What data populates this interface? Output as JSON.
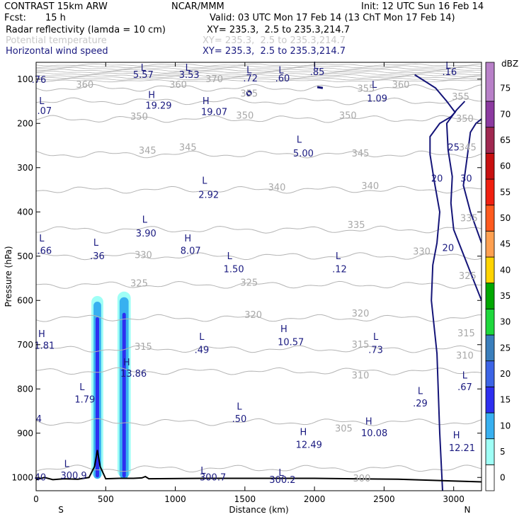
{
  "header": {
    "model": "CONTRAST 15km ARW",
    "org": "NCAR/MMM",
    "init": "Init: 12 UTC Sun 16 Feb 14",
    "fcst_label": "Fcst:",
    "fcst_value": "15 h",
    "valid": "Valid: 03 UTC Mon 17 Feb 14 (13 ChT Mon 17 Feb 14)",
    "fields": [
      {
        "name": "Radar reflectivity (lamda = 10 cm)",
        "xy": "XY= 235.3,  2.5 to 235.3,214.7",
        "style": "black"
      },
      {
        "name": "Potential temperature",
        "xy": "XY= 235.3,  2.5 to 235.3,214.7",
        "style": "gray"
      },
      {
        "name": "Horizontal wind speed",
        "xy": "XY= 235.3,  2.5 to 235.3,214.7",
        "style": "blue"
      }
    ]
  },
  "chart_data": {
    "type": "cross-section contour",
    "xlabel": "Distance (km)",
    "ylabel": "Pressure (hPa)",
    "xlim": [
      0,
      3200
    ],
    "ylim": [
      1030,
      62
    ],
    "x_ticks": [
      0,
      500,
      1000,
      1500,
      2000,
      2500,
      3000
    ],
    "y_ticks": [
      100,
      200,
      300,
      400,
      500,
      600,
      700,
      800,
      900,
      1000
    ],
    "x_end_labels": {
      "left": "S",
      "right": "N"
    },
    "colorbar": {
      "unit": "dBZ",
      "levels": [
        0,
        5,
        10,
        15,
        20,
        25,
        30,
        35,
        40,
        45,
        50,
        55,
        60,
        65,
        70,
        75
      ],
      "colors": [
        "#ffffff",
        "#9ffff6",
        "#38b0f0",
        "#2d2ff0",
        "#3c64e6",
        "#3a7ebc",
        "#1ed83c",
        "#00a800",
        "#ffd400",
        "#ffa050",
        "#ff5a1e",
        "#f02010",
        "#c81010",
        "#a02850",
        "#8c3aa0",
        "#b880c8"
      ]
    },
    "reflectivity_columns": [
      {
        "x_center": 440,
        "p_top": 590,
        "p_bottom": 1000,
        "width_km": 55,
        "inner": 15
      },
      {
        "x_center": 632,
        "p_top": 580,
        "p_bottom": 1000,
        "width_km": 65,
        "inner": 15
      }
    ],
    "theta_contours": [
      {
        "level": "360",
        "p": 120
      },
      {
        "level": "355",
        "p": 150
      },
      {
        "level": "350",
        "p": 190
      },
      {
        "level": "345",
        "p": 270
      },
      {
        "level": "340",
        "p": 350
      },
      {
        "level": "335",
        "p": 440
      },
      {
        "level": "330",
        "p": 500
      },
      {
        "level": "325",
        "p": 565
      },
      {
        "level": "320",
        "p": 640
      },
      {
        "level": "315",
        "p": 710
      },
      {
        "level": "310",
        "p": 760
      },
      {
        "level": "305",
        "p": 875
      },
      {
        "level": "300",
        "p": 980
      }
    ],
    "theta_labels": [
      {
        "t": "360",
        "x": 350,
        "p": 113
      },
      {
        "t": "370",
        "x": 1280,
        "p": 100
      },
      {
        "t": "360",
        "x": 1020,
        "p": 113
      },
      {
        "t": "360",
        "x": 2620,
        "p": 113
      },
      {
        "t": "355",
        "x": 1530,
        "p": 133
      },
      {
        "t": "355",
        "x": 2370,
        "p": 122
      },
      {
        "t": "355",
        "x": 3050,
        "p": 140
      },
      {
        "t": "350",
        "x": 740,
        "p": 185
      },
      {
        "t": "350",
        "x": 1500,
        "p": 183
      },
      {
        "t": "350",
        "x": 2240,
        "p": 183
      },
      {
        "t": "350",
        "x": 3080,
        "p": 190
      },
      {
        "t": "345",
        "x": 800,
        "p": 262
      },
      {
        "t": "345",
        "x": 1090,
        "p": 255
      },
      {
        "t": "345",
        "x": 2330,
        "p": 268
      },
      {
        "t": "345",
        "x": 3100,
        "p": 255
      },
      {
        "t": "340",
        "x": 1730,
        "p": 345
      },
      {
        "t": "340",
        "x": 2400,
        "p": 342
      },
      {
        "t": "335",
        "x": 2300,
        "p": 430
      },
      {
        "t": "335",
        "x": 3110,
        "p": 415
      },
      {
        "t": "330",
        "x": 770,
        "p": 498
      },
      {
        "t": "330",
        "x": 2770,
        "p": 490
      },
      {
        "t": "325",
        "x": 740,
        "p": 562
      },
      {
        "t": "325",
        "x": 1530,
        "p": 560
      },
      {
        "t": "325",
        "x": 3100,
        "p": 545
      },
      {
        "t": "320",
        "x": 1560,
        "p": 633
      },
      {
        "t": "320",
        "x": 2330,
        "p": 630
      },
      {
        "t": "315",
        "x": 770,
        "p": 705
      },
      {
        "t": "315",
        "x": 2330,
        "p": 700
      },
      {
        "t": "315",
        "x": 3090,
        "p": 675
      },
      {
        "t": "310",
        "x": 2330,
        "p": 770
      },
      {
        "t": "310",
        "x": 3080,
        "p": 725
      },
      {
        "t": "305",
        "x": 2210,
        "p": 890
      },
      {
        "t": "300",
        "x": 2340,
        "p": 1003
      }
    ],
    "hl_labels": [
      {
        "t": "L",
        "x": 770,
        "p": 75
      },
      {
        "t": "5.57",
        "x": 770,
        "p": 91
      },
      {
        "t": "L",
        "x": 1090,
        "p": 75
      },
      {
        "t": "3.53",
        "x": 1100,
        "p": 91
      },
      {
        "t": "L",
        "x": 1530,
        "p": 80
      },
      {
        "t": ".72",
        "x": 1540,
        "p": 99
      },
      {
        "t": "L",
        "x": 1760,
        "p": 80
      },
      {
        "t": ".60",
        "x": 1770,
        "p": 99
      },
      {
        "t": "L",
        "x": 2010,
        "p": 70
      },
      {
        "t": ".85",
        "x": 2020,
        "p": 84
      },
      {
        "t": "L",
        "x": 2960,
        "p": 70
      },
      {
        "t": ".16",
        "x": 2970,
        "p": 84
      },
      {
        "t": ".76",
        "x": 20,
        "p": 102
      },
      {
        "t": "L",
        "x": 40,
        "p": 150
      },
      {
        "t": ".07",
        "x": 60,
        "p": 172
      },
      {
        "t": "H",
        "x": 830,
        "p": 136
      },
      {
        "t": "19.29",
        "x": 880,
        "p": 160
      },
      {
        "t": "H",
        "x": 1220,
        "p": 150
      },
      {
        "t": "19.07",
        "x": 1280,
        "p": 175
      },
      {
        "t": "L",
        "x": 2430,
        "p": 113
      },
      {
        "t": "1.09",
        "x": 2450,
        "p": 144
      },
      {
        "t": "L",
        "x": 1890,
        "p": 237
      },
      {
        "t": "5.00",
        "x": 1920,
        "p": 268
      },
      {
        "t": "L",
        "x": 1210,
        "p": 330
      },
      {
        "t": "2.92",
        "x": 1240,
        "p": 362
      },
      {
        "t": "L",
        "x": 780,
        "p": 418
      },
      {
        "t": "3.90",
        "x": 790,
        "p": 449
      },
      {
        "t": "L",
        "x": 40,
        "p": 460
      },
      {
        "t": ".66",
        "x": 60,
        "p": 488
      },
      {
        "t": "L",
        "x": 430,
        "p": 470
      },
      {
        "t": ".36",
        "x": 440,
        "p": 500
      },
      {
        "t": "H",
        "x": 1090,
        "p": 460
      },
      {
        "t": "8.07",
        "x": 1110,
        "p": 488
      },
      {
        "t": "L",
        "x": 1390,
        "p": 500
      },
      {
        "t": "1.50",
        "x": 1420,
        "p": 530
      },
      {
        "t": "L",
        "x": 2170,
        "p": 500
      },
      {
        "t": ".12",
        "x": 2180,
        "p": 530
      },
      {
        "t": "H",
        "x": 1780,
        "p": 665
      },
      {
        "t": "10.57",
        "x": 1830,
        "p": 695
      },
      {
        "t": "H",
        "x": 40,
        "p": 676
      },
      {
        "t": "1.81",
        "x": 60,
        "p": 703
      },
      {
        "t": "L",
        "x": 1190,
        "p": 683
      },
      {
        "t": ".49",
        "x": 1190,
        "p": 712
      },
      {
        "t": "L",
        "x": 2440,
        "p": 683
      },
      {
        "t": ".73",
        "x": 2440,
        "p": 712
      },
      {
        "t": "H",
        "x": 650,
        "p": 740
      },
      {
        "t": "13.86",
        "x": 700,
        "p": 766
      },
      {
        "t": "L",
        "x": 330,
        "p": 796
      },
      {
        "t": "1.79",
        "x": 350,
        "p": 824
      },
      {
        "t": "L",
        "x": 3080,
        "p": 770
      },
      {
        "t": ".67",
        "x": 3080,
        "p": 796
      },
      {
        "t": "L",
        "x": 2760,
        "p": 805
      },
      {
        "t": ".29",
        "x": 2760,
        "p": 833
      },
      {
        "t": "4",
        "x": 20,
        "p": 868
      },
      {
        "t": "L",
        "x": 1460,
        "p": 840
      },
      {
        "t": ".50",
        "x": 1460,
        "p": 868
      },
      {
        "t": "H",
        "x": 2390,
        "p": 874
      },
      {
        "t": "10.08",
        "x": 2430,
        "p": 900
      },
      {
        "t": "H",
        "x": 1920,
        "p": 898
      },
      {
        "t": "12.49",
        "x": 1960,
        "p": 927
      },
      {
        "t": "H",
        "x": 3020,
        "p": 905
      },
      {
        "t": "12.21",
        "x": 3060,
        "p": 934
      },
      {
        "t": "L",
        "x": 220,
        "p": 970
      },
      {
        "t": "300.9",
        "x": 270,
        "p": 996
      },
      {
        "t": "L",
        "x": 1200,
        "p": 985
      },
      {
        "t": "300.7",
        "x": 1270,
        "p": 1000
      },
      {
        "t": "L",
        "x": 1760,
        "p": 990
      },
      {
        "t": "300.2",
        "x": 1770,
        "p": 1006
      },
      {
        "t": "40",
        "x": 30,
        "p": 1000
      }
    ],
    "wind_contour_labels": [
      {
        "t": "25",
        "x": 3000,
        "p": 255
      },
      {
        "t": "20",
        "x": 2880,
        "p": 325
      },
      {
        "t": "30",
        "x": 3090,
        "p": 325
      },
      {
        "t": "20",
        "x": 2960,
        "p": 482
      }
    ],
    "terrain_peaks": [
      {
        "x": 440,
        "p": 938
      },
      {
        "x": 785,
        "p": 998
      }
    ]
  }
}
